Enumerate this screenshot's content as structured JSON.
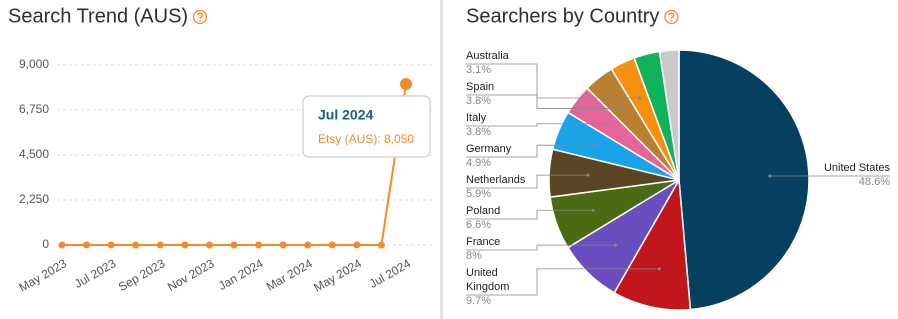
{
  "chart_data": [
    {
      "type": "line",
      "title": "Search Trend (AUS)",
      "categories": [
        "May 2023",
        null,
        "Jul 2023",
        null,
        "Sep 2023",
        null,
        "Nov 2023",
        null,
        "Jan 2024",
        null,
        "Mar 2024",
        null,
        "May 2024",
        null,
        "Jul 2024"
      ],
      "series": [
        {
          "name": "Etsy (AUS)",
          "color": "#f28b2c",
          "values": [
            0,
            0,
            0,
            0,
            0,
            0,
            0,
            0,
            0,
            0,
            0,
            0,
            0,
            0,
            8050
          ]
        }
      ],
      "ylim": [
        0,
        9000
      ],
      "yticks": [
        0,
        {
          "value": 2250,
          "label": "2,250"
        },
        {
          "value": 4500,
          "label": "4,500"
        },
        {
          "value": 6750,
          "label": "6,750"
        },
        {
          "value": 9000,
          "label": "9,000"
        }
      ],
      "grid": true,
      "tooltip": {
        "title": "Jul 2024",
        "text": "Etsy (AUS): 8,050"
      }
    },
    {
      "type": "pie",
      "title": "Searchers by Country",
      "categories": [
        "United States",
        "United Kingdom",
        "France",
        "Poland",
        "Netherlands",
        "Germany",
        "Italy",
        "Spain",
        "Australia",
        null,
        null
      ],
      "values": [
        48.6,
        9.7,
        8,
        6.6,
        5.9,
        4.9,
        3.8,
        3.8,
        3.1,
        3.2,
        2.4
      ],
      "value_labels": [
        "48.6%",
        "9.7%",
        "8%",
        "6.6%",
        "5.9%",
        "4.9%",
        "3.8%",
        "3.8%",
        "3.1%",
        null,
        null
      ],
      "colors": [
        "#073f61",
        "#c1161b",
        "#6a4dbf",
        "#4a6b12",
        "#5a4524",
        "#1aa3e8",
        "#e5649c",
        "#b88030",
        "#f7900f",
        "#10b35a",
        "#c9c9c9"
      ]
    }
  ]
}
